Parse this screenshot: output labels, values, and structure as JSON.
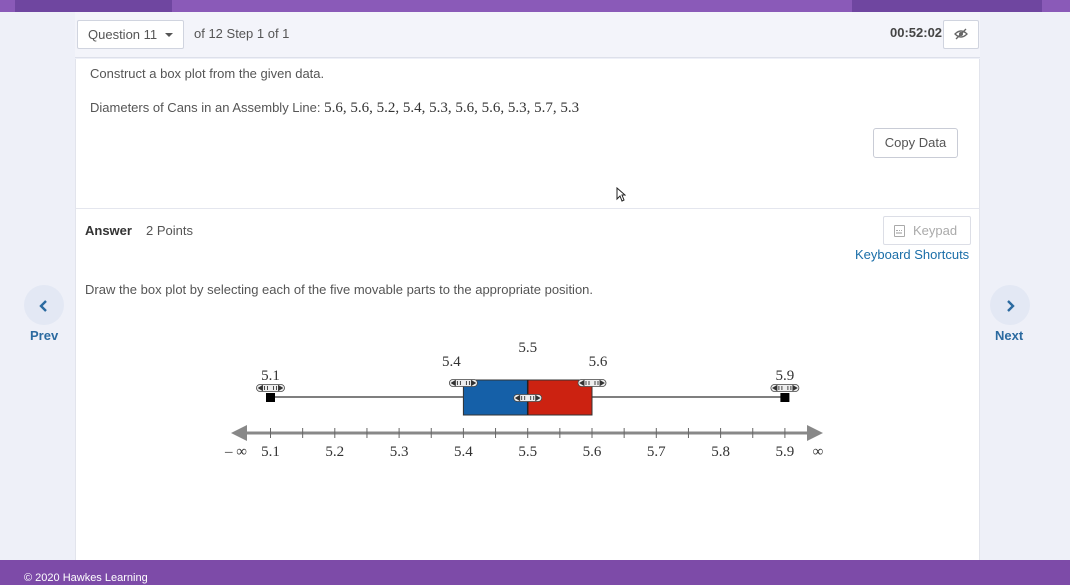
{
  "header": {
    "question_select": "Question 11",
    "of_text": "of 12 Step 1 of 1",
    "timer": "00:52:02"
  },
  "question": {
    "prompt": "Construct a box plot from the given data.",
    "data_label": "Diameters of Cans in an Assembly Line:",
    "data_values": "5.6, 5.6, 5.2, 5.4, 5.3, 5.6, 5.6, 5.3, 5.7, 5.3",
    "copy_button": "Copy Data"
  },
  "answer": {
    "label": "Answer",
    "points": "2 Points",
    "keypad_button": "Keypad",
    "keyboard_shortcuts_link": "Keyboard Shortcuts",
    "instruction": "Draw the box plot by selecting each of the five movable parts to the appropriate position."
  },
  "nav": {
    "prev_label": "Prev",
    "next_label": "Next"
  },
  "footer": {
    "copyright": "© 2020 Hawkes Learning"
  },
  "boxplot": {
    "min": 5.1,
    "q1": 5.4,
    "median": 5.5,
    "q3": 5.6,
    "max": 5.9,
    "min_label": "5.1",
    "q1_label": "5.4",
    "median_label": "5.5",
    "q3_label": "5.6",
    "max_label": "5.9",
    "ticks": [
      "5.1",
      "5.2",
      "5.3",
      "5.4",
      "5.5",
      "5.6",
      "5.7",
      "5.8",
      "5.9"
    ],
    "neg_inf_label": "– ∞",
    "pos_inf_label": "∞",
    "colors": {
      "lower_box": "#1560a8",
      "upper_box": "#cc2211",
      "whisker": "#333333",
      "axis": "#888888"
    }
  }
}
